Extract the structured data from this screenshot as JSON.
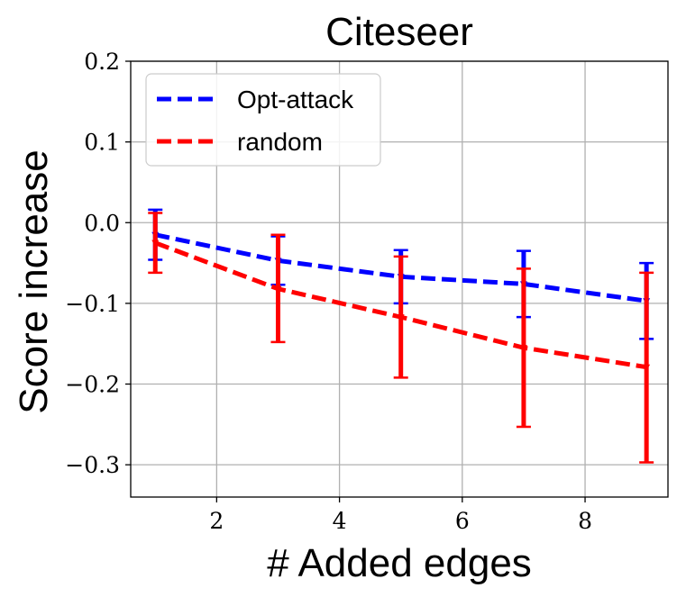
{
  "chart_data": {
    "type": "line",
    "title": "Citeseer",
    "xlabel": "# Added edges",
    "ylabel": "Score increase",
    "xlim": [
      0.6,
      9.35
    ],
    "ylim": [
      -0.34,
      0.2
    ],
    "xticks": [
      2,
      4,
      6,
      8
    ],
    "xtick_labels": [
      "2",
      "4",
      "6",
      "8"
    ],
    "yticks": [
      0.2,
      0.1,
      0.0,
      -0.1,
      -0.2,
      -0.3
    ],
    "ytick_labels": [
      "0.2",
      "0.1",
      "0.0",
      "−0.1",
      "−0.2",
      "−0.3"
    ],
    "grid": true,
    "legend_position": "top-left",
    "x": [
      1,
      3,
      5,
      7,
      9
    ],
    "series": [
      {
        "name": "Opt-attack",
        "color": "#0000ff",
        "values": [
          -0.015,
          -0.047,
          -0.067,
          -0.076,
          -0.097
        ],
        "err_low": [
          -0.046,
          -0.077,
          -0.1,
          -0.117,
          -0.144
        ],
        "err_high": [
          0.016,
          -0.017,
          -0.034,
          -0.035,
          -0.05
        ]
      },
      {
        "name": "random",
        "color": "#ff0000",
        "values": [
          -0.025,
          -0.082,
          -0.117,
          -0.155,
          -0.179
        ],
        "err_low": [
          -0.062,
          -0.148,
          -0.192,
          -0.253,
          -0.297
        ],
        "err_high": [
          0.012,
          -0.015,
          -0.042,
          -0.057,
          -0.062
        ]
      }
    ]
  }
}
